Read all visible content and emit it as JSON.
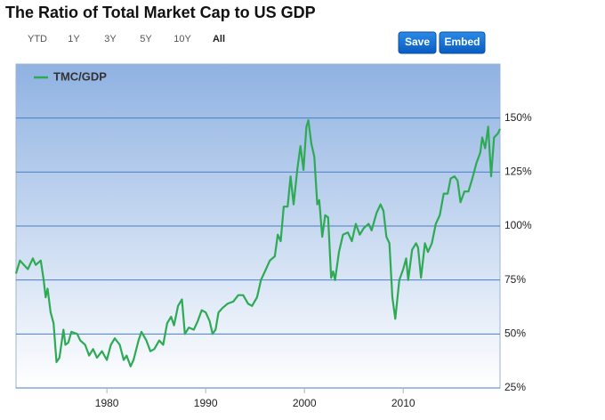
{
  "range_buttons": [
    "YTD",
    "1Y",
    "3Y",
    "5Y",
    "10Y",
    "All"
  ],
  "actions": [
    "Save",
    "Embed"
  ],
  "chart_data": {
    "type": "line",
    "title": "The Ratio of Total Market Cap to US GDP",
    "x": [
      1970.8,
      1971.2,
      1971.6,
      1972.0,
      1972.5,
      1972.8,
      1973.3,
      1973.6,
      1973.8,
      1974.0,
      1974.3,
      1974.6,
      1974.9,
      1975.2,
      1975.6,
      1975.8,
      1976.1,
      1976.4,
      1977.0,
      1977.3,
      1977.8,
      1978.2,
      1978.6,
      1979.0,
      1979.5,
      1980.0,
      1980.4,
      1980.8,
      1981.3,
      1981.7,
      1982.0,
      1982.4,
      1982.7,
      1983.2,
      1983.5,
      1984.0,
      1984.4,
      1984.8,
      1985.3,
      1985.7,
      1986.1,
      1986.5,
      1986.8,
      1987.2,
      1987.6,
      1987.9,
      1988.3,
      1988.8,
      1989.2,
      1989.6,
      1990.0,
      1990.4,
      1990.7,
      1991.0,
      1991.3,
      1991.7,
      1992.2,
      1992.8,
      1993.3,
      1993.8,
      1994.3,
      1994.7,
      1995.2,
      1995.6,
      1996.0,
      1996.5,
      1997.0,
      1997.3,
      1997.6,
      1997.9,
      1998.3,
      1998.6,
      1998.9,
      1999.3,
      1999.6,
      1999.9,
      2000.2,
      2000.4,
      2000.7,
      2001.0,
      2001.3,
      2001.5,
      2001.8,
      2002.1,
      2002.4,
      2002.7,
      2002.9,
      2003.1,
      2003.5,
      2003.9,
      2004.4,
      2004.8,
      2005.2,
      2005.6,
      2006.0,
      2006.5,
      2006.8,
      2007.3,
      2007.7,
      2008.0,
      2008.3,
      2008.6,
      2008.9,
      2009.2,
      2009.6,
      2010.0,
      2010.3,
      2010.5,
      2010.9,
      2011.3,
      2011.5,
      2011.8,
      2012.2,
      2012.5,
      2012.9,
      2013.3,
      2013.7,
      2014.1,
      2014.5,
      2014.8,
      2015.2,
      2015.5,
      2015.8,
      2016.2,
      2016.6,
      2017.0,
      2017.4,
      2017.8,
      2018.0,
      2018.3,
      2018.6,
      2018.9,
      2019.2,
      2019.6,
      2019.8
    ],
    "series": [
      {
        "name": "TMC/GDP",
        "color": "#2eaa55",
        "values": [
          78,
          84,
          82,
          80,
          85,
          82,
          84,
          75,
          67,
          71,
          60,
          55,
          37,
          39,
          52,
          45,
          46,
          51,
          50,
          47,
          45,
          40,
          43,
          39,
          42,
          38,
          45,
          48,
          45,
          38,
          40,
          35,
          38,
          47,
          51,
          47,
          42,
          43,
          47,
          45,
          55,
          58,
          54,
          63,
          66,
          50,
          53,
          52,
          56,
          61,
          60,
          56,
          50,
          52,
          60,
          62,
          64,
          65,
          68,
          68,
          64,
          63,
          67,
          75,
          79,
          84,
          86,
          96,
          93,
          109,
          109,
          123,
          110,
          127,
          137,
          126,
          146,
          149,
          138,
          132,
          110,
          112,
          95,
          105,
          104,
          76,
          79,
          75,
          88,
          96,
          97,
          93,
          101,
          96,
          99,
          101,
          98,
          106,
          110,
          107,
          95,
          92,
          67,
          57,
          75,
          80,
          85,
          75,
          89,
          92,
          90,
          76,
          92,
          88,
          92,
          101,
          105,
          115,
          115,
          122,
          123,
          121,
          111,
          116,
          116,
          122,
          129,
          134,
          141,
          136,
          146,
          123,
          141,
          143,
          145
        ]
      }
    ],
    "xlim": [
      1970.8,
      2019.8
    ],
    "xticks": [
      1980,
      1990,
      2000,
      2010
    ],
    "ylim": [
      25,
      175
    ],
    "yticks": [
      {
        "value": 25,
        "label": "25%"
      },
      {
        "value": 50,
        "label": "50%"
      },
      {
        "value": 75,
        "label": "75%"
      },
      {
        "value": 100,
        "label": "100%"
      },
      {
        "value": 125,
        "label": "125%"
      },
      {
        "value": 150,
        "label": "150%"
      }
    ],
    "grid": true,
    "legend": "top-left"
  }
}
